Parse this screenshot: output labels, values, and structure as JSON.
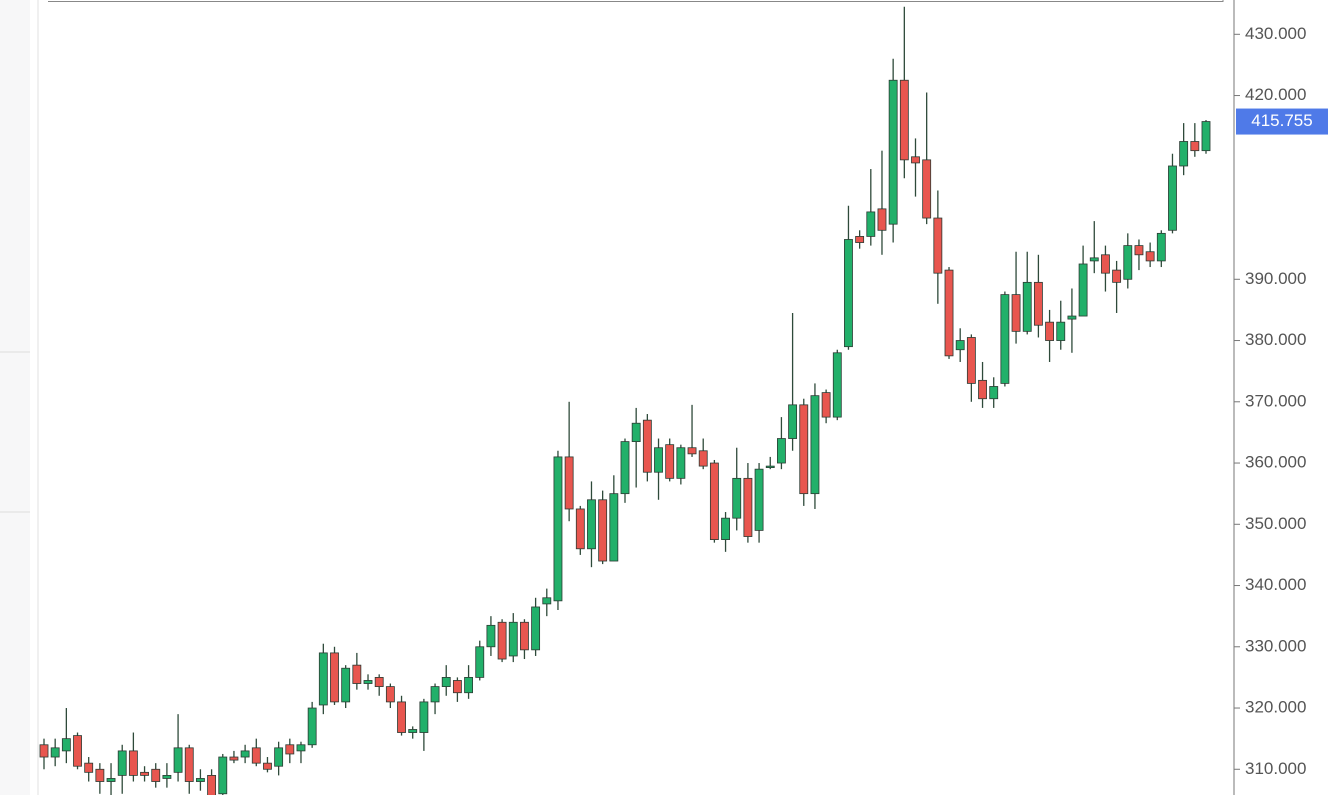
{
  "chart_data": {
    "type": "candlestick",
    "up_color": "#22b06a",
    "down_color": "#e8564f",
    "wick_color": "#2e4a3a",
    "price_label_color": "#4f7ae8",
    "ylim": [
      305.8,
      435.6
    ],
    "yticks": [
      {
        "value": 310,
        "label": "310.000"
      },
      {
        "value": 320,
        "label": "320.000"
      },
      {
        "value": 330,
        "label": "330.000"
      },
      {
        "value": 340,
        "label": "340.000"
      },
      {
        "value": 350,
        "label": "350.000"
      },
      {
        "value": 360,
        "label": "360.000"
      },
      {
        "value": 370,
        "label": "370.000"
      },
      {
        "value": 380,
        "label": "380.000"
      },
      {
        "value": 390,
        "label": "390.000"
      },
      {
        "value": 420,
        "label": "420.000"
      },
      {
        "value": 430,
        "label": "430.000"
      }
    ],
    "open": [
      314,
      312,
      313,
      315.5,
      311,
      310,
      308,
      309,
      313,
      309.5,
      310,
      308.5,
      309.5,
      313.5,
      308,
      309,
      306,
      312,
      312,
      313.5,
      311,
      310.5,
      314,
      313,
      314,
      320.5,
      329,
      321,
      327,
      324,
      325,
      323.5,
      321,
      316,
      316,
      321,
      323.5,
      324.5,
      322.5,
      325,
      330,
      334,
      328.5,
      334,
      329.5,
      337,
      337.5,
      361,
      352.5,
      346,
      354,
      344,
      355,
      363.5,
      367,
      358.5,
      363,
      357.5,
      362.5,
      362,
      360,
      347.5,
      351,
      357.5,
      349,
      359.5,
      360,
      364,
      369.5,
      355,
      371.5,
      367.5,
      379,
      397,
      397,
      401.5,
      399,
      422.5,
      410,
      409.5,
      400,
      391.5,
      378.5,
      380.5,
      373.5,
      370.5,
      373,
      387.5,
      381.5,
      389.5,
      383,
      380,
      383.5,
      384,
      393,
      394,
      391.5,
      390,
      395.5,
      394.5,
      393,
      398,
      408.5,
      412.5,
      411
    ],
    "high": [
      315,
      315,
      320,
      316,
      312,
      311,
      311,
      314,
      316,
      310.5,
      311,
      311,
      319,
      314,
      310,
      310,
      312.5,
      313,
      314,
      315,
      312,
      314.5,
      315,
      314.5,
      321,
      330.5,
      330,
      327,
      329,
      325.5,
      325.5,
      324,
      322,
      317,
      321.5,
      324,
      327,
      325,
      327,
      331,
      335,
      334.5,
      335.5,
      334.5,
      338,
      339.5,
      362,
      370,
      353,
      357,
      355.5,
      358,
      364,
      369,
      368,
      364,
      364,
      363,
      369.5,
      364,
      360.5,
      352,
      362.5,
      360,
      360,
      361,
      367.5,
      384.5,
      370.5,
      373,
      372,
      378.5,
      402,
      398,
      408,
      411,
      426,
      434.5,
      413,
      420.5,
      404.5,
      392,
      382,
      381,
      376.5,
      374,
      388,
      394.5,
      394.5,
      394,
      385,
      386.5,
      388.5,
      395.5,
      399.5,
      395.5,
      393,
      397.5,
      396.5,
      396,
      398,
      410.5,
      415.5,
      415.5,
      416
    ],
    "low": [
      310,
      310.5,
      311,
      310,
      308,
      306,
      305.5,
      306,
      308,
      308,
      307,
      307,
      308,
      306,
      306.5,
      304,
      305,
      311,
      311,
      310.5,
      309.5,
      309,
      311,
      311,
      313.5,
      319,
      320.5,
      320,
      323,
      323,
      322,
      320,
      315.5,
      315,
      313,
      319,
      322,
      321,
      321.5,
      324.5,
      328.5,
      327.5,
      327.5,
      328,
      328.5,
      335,
      336,
      350.5,
      345,
      343,
      343.5,
      344,
      353.5,
      356,
      357,
      354,
      357,
      356.5,
      361,
      359,
      347,
      345.5,
      349,
      347,
      347,
      359,
      359,
      362,
      353,
      352.5,
      366.5,
      367,
      378.5,
      395,
      395.5,
      394,
      396,
      406.5,
      403.5,
      399,
      386,
      377,
      376.5,
      370,
      369,
      369,
      372.5,
      379.5,
      381,
      380.5,
      376.5,
      378.5,
      378,
      384,
      391,
      388,
      384.5,
      388.5,
      391.5,
      392,
      392,
      397.5,
      407,
      410,
      410.5
    ],
    "close": [
      312,
      313.5,
      315,
      310.5,
      309.5,
      308,
      308.5,
      313,
      309,
      309,
      308,
      309,
      313.5,
      308,
      308.5,
      305.5,
      312,
      311.5,
      313,
      311,
      310,
      313.5,
      312.5,
      314,
      320,
      329,
      321,
      326.5,
      324,
      324.5,
      323.5,
      321,
      316,
      316.5,
      321,
      323.5,
      325,
      322.5,
      325,
      330,
      333.5,
      328,
      334,
      329.5,
      336.5,
      338,
      361,
      352.5,
      346,
      354,
      344,
      355,
      363.5,
      366.5,
      358.5,
      362.5,
      357.5,
      362.5,
      361.5,
      359.5,
      347.5,
      351,
      357.5,
      348,
      359,
      359.5,
      364,
      369.5,
      355,
      371,
      367.5,
      378,
      396.5,
      396,
      401,
      398,
      422.5,
      409.5,
      409,
      400,
      391,
      377.5,
      380,
      373,
      370.5,
      372.5,
      387.5,
      381.5,
      389.5,
      382.5,
      380,
      383,
      384,
      392.5,
      393.5,
      391,
      389.5,
      395.5,
      394,
      393,
      397.5,
      408.5,
      412.5,
      411,
      415.755
    ]
  }
}
